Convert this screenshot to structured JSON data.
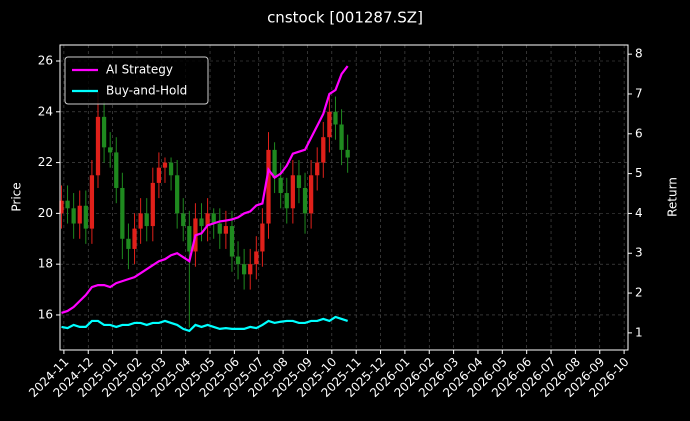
{
  "chart_data": {
    "type": "candlestick",
    "title": "cnstock [001287.SZ]",
    "y_label": "Price",
    "y2_label": "Return",
    "x": [
      -0.1,
      0.15,
      0.4,
      0.65,
      0.9,
      1.15,
      1.4,
      1.65,
      1.9,
      2.15,
      2.4,
      2.65,
      2.9,
      3.15,
      3.4,
      3.65,
      3.9,
      4.15,
      4.4,
      4.65,
      4.9,
      5.15,
      5.4,
      5.65,
      5.9,
      6.15,
      6.4,
      6.65,
      6.9,
      7.15,
      7.4,
      7.65,
      7.9,
      8.15,
      8.4,
      8.65,
      8.9,
      9.15,
      9.4,
      9.65,
      9.9,
      10.15,
      10.4,
      10.65,
      10.9,
      11.15,
      11.4,
      11.65
    ],
    "open": [
      20.0,
      20.5,
      20.2,
      19.6,
      20.3,
      19.4,
      21.5,
      23.8,
      22.6,
      22.4,
      21.0,
      19.0,
      18.6,
      19.4,
      20.0,
      19.5,
      21.2,
      21.8,
      22.0,
      21.5,
      20.0,
      19.5,
      18.5,
      19.8,
      19.5,
      20.0,
      19.6,
      19.2,
      19.5,
      18.3,
      18.0,
      17.6,
      18.0,
      18.5,
      19.6,
      22.5,
      21.4,
      20.8,
      20.2,
      21.5,
      21.0,
      20.0,
      21.5,
      22.0,
      23.0,
      24.0,
      23.5,
      22.5
    ],
    "high": [
      21.1,
      21.1,
      20.8,
      20.9,
      20.9,
      22.1,
      24.8,
      24.4,
      23.2,
      23.0,
      21.6,
      19.6,
      20.0,
      20.6,
      20.6,
      21.8,
      22.4,
      22.2,
      22.2,
      22.1,
      20.6,
      20.1,
      20.4,
      20.4,
      20.6,
      20.2,
      20.2,
      20.1,
      20.1,
      18.9,
      18.6,
      18.6,
      19.1,
      20.2,
      23.2,
      22.8,
      22.0,
      21.4,
      22.1,
      22.1,
      21.6,
      22.1,
      22.6,
      23.6,
      24.6,
      24.6,
      24.1,
      23.1
    ],
    "low": [
      19.4,
      19.6,
      19.0,
      19.0,
      18.8,
      18.8,
      21.0,
      22.0,
      21.8,
      20.4,
      18.2,
      17.8,
      18.0,
      18.8,
      18.9,
      18.9,
      20.6,
      21.2,
      20.9,
      19.4,
      18.9,
      15.5,
      17.9,
      18.9,
      18.9,
      19.0,
      18.6,
      18.6,
      17.7,
      17.4,
      17.0,
      17.0,
      17.4,
      17.9,
      19.0,
      20.8,
      20.2,
      19.6,
      19.6,
      20.4,
      19.2,
      19.4,
      20.9,
      21.4,
      22.4,
      22.9,
      21.9,
      21.6
    ],
    "close": [
      20.5,
      20.2,
      19.6,
      20.3,
      19.4,
      21.5,
      23.8,
      22.6,
      22.4,
      21.0,
      19.0,
      18.6,
      19.4,
      20.0,
      19.5,
      21.2,
      21.8,
      22.0,
      21.5,
      20.0,
      19.5,
      18.5,
      19.8,
      19.5,
      20.0,
      19.6,
      19.2,
      19.5,
      18.3,
      18.0,
      17.6,
      18.0,
      18.5,
      19.6,
      22.5,
      21.4,
      20.8,
      20.2,
      21.5,
      21.0,
      20.0,
      21.5,
      22.0,
      23.0,
      24.0,
      23.5,
      22.5,
      22.2
    ],
    "up_color": "#e0201a",
    "down_color": "#1f8a1f",
    "series": [
      {
        "name": "AI Strategy",
        "color": "#ff00ff",
        "axis": "y2",
        "values": [
          1.5,
          1.55,
          1.65,
          1.8,
          1.95,
          2.15,
          2.2,
          2.2,
          2.15,
          2.25,
          2.3,
          2.35,
          2.4,
          2.5,
          2.6,
          2.7,
          2.8,
          2.85,
          2.95,
          3.0,
          2.9,
          2.8,
          3.45,
          3.5,
          3.7,
          3.75,
          3.8,
          3.82,
          3.85,
          3.9,
          4.0,
          4.05,
          4.2,
          4.25,
          5.1,
          4.9,
          5.0,
          5.2,
          5.5,
          5.55,
          5.6,
          5.9,
          6.2,
          6.5,
          7.0,
          7.1,
          7.5,
          7.7
        ]
      },
      {
        "name": "Buy-and-Hold",
        "color": "#00ffff",
        "axis": "y2",
        "values": [
          1.15,
          1.12,
          1.2,
          1.15,
          1.15,
          1.3,
          1.3,
          1.2,
          1.2,
          1.15,
          1.2,
          1.2,
          1.25,
          1.25,
          1.2,
          1.25,
          1.25,
          1.3,
          1.25,
          1.2,
          1.1,
          1.05,
          1.2,
          1.15,
          1.2,
          1.15,
          1.1,
          1.12,
          1.1,
          1.1,
          1.1,
          1.15,
          1.12,
          1.2,
          1.3,
          1.25,
          1.28,
          1.3,
          1.3,
          1.25,
          1.25,
          1.3,
          1.3,
          1.35,
          1.3,
          1.4,
          1.35,
          1.3
        ]
      }
    ],
    "xlim": [
      -0.16,
      23.16
    ],
    "xticks": [
      {
        "value": 0,
        "label": "2024-11"
      },
      {
        "value": 1,
        "label": "2024-12"
      },
      {
        "value": 2,
        "label": "2025-01"
      },
      {
        "value": 3,
        "label": "2025-02"
      },
      {
        "value": 4,
        "label": "2025-03"
      },
      {
        "value": 5,
        "label": "2025-04"
      },
      {
        "value": 6,
        "label": "2025-05"
      },
      {
        "value": 7,
        "label": "2025-06"
      },
      {
        "value": 8,
        "label": "2025-07"
      },
      {
        "value": 9,
        "label": "2025-08"
      },
      {
        "value": 10,
        "label": "2025-09"
      },
      {
        "value": 11,
        "label": "2025-10"
      },
      {
        "value": 12,
        "label": "2025-11"
      },
      {
        "value": 13,
        "label": "2025-12"
      },
      {
        "value": 14,
        "label": "2026-01"
      },
      {
        "value": 15,
        "label": "2026-02"
      },
      {
        "value": 16,
        "label": "2026-03"
      },
      {
        "value": 17,
        "label": "2026-04"
      },
      {
        "value": 18,
        "label": "2026-05"
      },
      {
        "value": 19,
        "label": "2026-06"
      },
      {
        "value": 20,
        "label": "2026-07"
      },
      {
        "value": 21,
        "label": "2026-08"
      },
      {
        "value": 22,
        "label": "2026-09"
      },
      {
        "value": 23,
        "label": "2026-10"
      }
    ],
    "ylim": [
      14.62,
      26.63
    ],
    "yticks": [
      16,
      18,
      20,
      22,
      24,
      26
    ],
    "y2lim": [
      0.57,
      8.23
    ],
    "y2ticks": [
      1,
      2,
      3,
      4,
      5,
      6,
      7,
      8
    ],
    "grid": true,
    "legend": "upper left"
  }
}
